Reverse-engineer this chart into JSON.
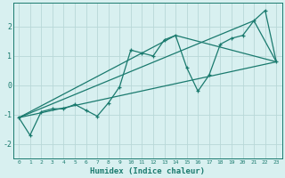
{
  "xlabel": "Humidex (Indice chaleur)",
  "bg_color": "#d8f0f0",
  "grid_color": "#b8d8d8",
  "line_color": "#1a7a6e",
  "xlim": [
    -0.5,
    23.5
  ],
  "ylim": [
    -2.5,
    2.8
  ],
  "yticks": [
    -2,
    -1,
    0,
    1,
    2
  ],
  "xticks": [
    0,
    1,
    2,
    3,
    4,
    5,
    6,
    7,
    8,
    9,
    10,
    11,
    12,
    13,
    14,
    15,
    16,
    17,
    18,
    19,
    20,
    21,
    22,
    23
  ],
  "series": [
    {
      "x": [
        0,
        1,
        2,
        3,
        4,
        5,
        6,
        7,
        8,
        9,
        10,
        11,
        12,
        13,
        14,
        15,
        16,
        17,
        18,
        19,
        20,
        21,
        22,
        23
      ],
      "y": [
        -1.1,
        -1.7,
        -0.9,
        -0.8,
        -0.8,
        -0.65,
        -0.85,
        -1.05,
        -0.6,
        -0.05,
        1.2,
        1.1,
        1.0,
        1.55,
        1.7,
        0.6,
        -0.2,
        0.35,
        1.4,
        1.6,
        1.7,
        2.2,
        2.55,
        0.8
      ]
    },
    {
      "x": [
        0,
        23
      ],
      "y": [
        -1.1,
        0.8
      ]
    },
    {
      "x": [
        0,
        14,
        23
      ],
      "y": [
        -1.1,
        1.7,
        0.8
      ]
    },
    {
      "x": [
        0,
        21,
        23
      ],
      "y": [
        -1.1,
        2.2,
        0.8
      ]
    }
  ]
}
